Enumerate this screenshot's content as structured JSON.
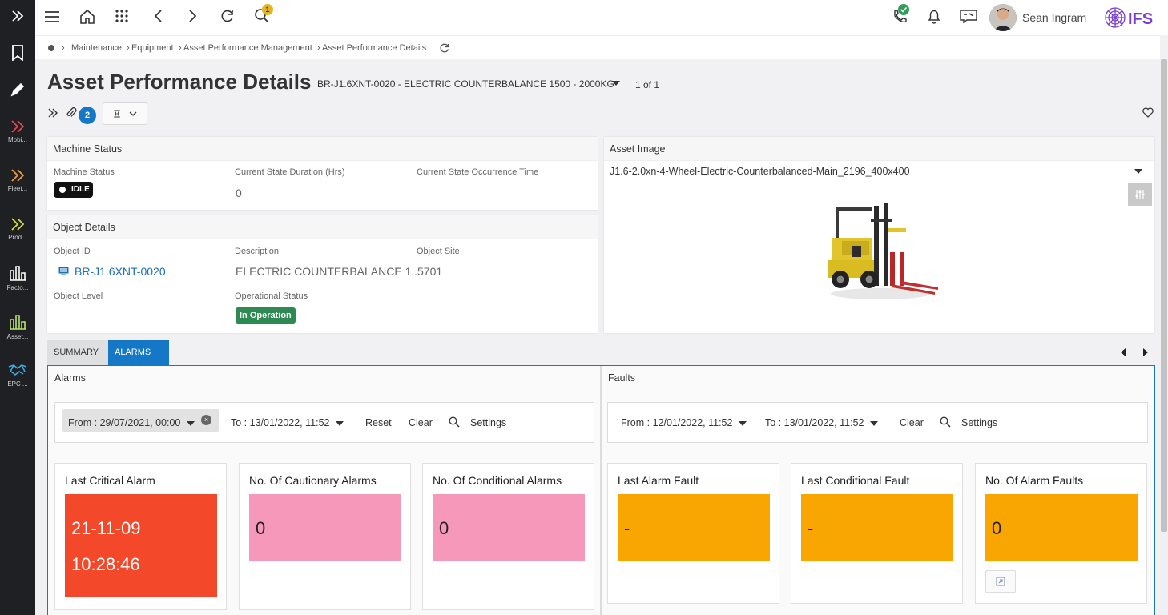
{
  "colors": {
    "rail_bg": "#1e2024",
    "accent_blue": "#1578c7",
    "critical": "#f3492a",
    "cautionary": "#f598b9",
    "fault": "#f9a602",
    "status_green": "#2e8a53"
  },
  "rail": {
    "items": [
      {
        "label": "Mobi...",
        "icon": "chevrons-icon",
        "color": "#e5484d"
      },
      {
        "label": "Fleet...",
        "icon": "chevrons-icon",
        "color": "#f39c2b"
      },
      {
        "label": "Prod...",
        "icon": "chevrons-icon",
        "color": "#d8df3e"
      },
      {
        "label": "Facto...",
        "icon": "bar-chart-icon",
        "color": "#ffffff"
      },
      {
        "label": "Asset...",
        "icon": "bar-chart-icon",
        "color": "#b8e36a"
      },
      {
        "label": "EPC ...",
        "icon": "handshake-icon",
        "color": "#3fa7e0"
      }
    ]
  },
  "header": {
    "search_badge": "1",
    "user_name": "Sean Ingram",
    "logo_text": "IFS"
  },
  "breadcrumb": {
    "items": [
      "Maintenance",
      "Equipment",
      "Asset Performance Management",
      "Asset Performance Details"
    ]
  },
  "page": {
    "title": "Asset Performance Details",
    "record": "BR-J1.6XNT-0020 - ELECTRIC COUNTERBALANCE 1500 - 2000KG",
    "record_count": "1 of 1",
    "attachment_count": "2"
  },
  "machine_status": {
    "heading": "Machine Status",
    "status_label": "Machine Status",
    "status_value": "IDLE",
    "duration_label": "Current State Duration (Hrs)",
    "duration_value": "0",
    "occurrence_label": "Current State Occurrence Time",
    "occurrence_value": ""
  },
  "object_details": {
    "heading": "Object Details",
    "object_id_label": "Object ID",
    "object_id_value": "BR-J1.6XNT-0020",
    "description_label": "Description",
    "description_value": "ELECTRIC COUNTERBALANCE 1...",
    "site_label": "Object Site",
    "site_value": "5701",
    "level_label": "Object Level",
    "level_value": "",
    "op_status_label": "Operational Status",
    "op_status_value": "In Operation"
  },
  "asset_image": {
    "heading": "Asset Image",
    "selected": "J1.6-2.0xn-4-Wheel-Electric-Counterbalanced-Main_2196_400x400"
  },
  "tabs": [
    {
      "label": "SUMMARY",
      "active": false
    },
    {
      "label": "ALARMS",
      "active": true
    }
  ],
  "alarms": {
    "heading": "Alarms",
    "from": "From : 29/07/2021, 00:00",
    "to": "To : 13/01/2022, 11:52",
    "reset": "Reset",
    "clear": "Clear",
    "settings": "Settings",
    "tiles": [
      {
        "title": "Last Critical Alarm",
        "line1": "21-11-09",
        "line2": "10:28:46"
      },
      {
        "title": "No. Of Cautionary Alarms",
        "value": "0"
      },
      {
        "title": "No. Of Conditional Alarms",
        "value": "0"
      }
    ]
  },
  "faults": {
    "heading": "Faults",
    "from": "From : 12/01/2022, 11:52",
    "to": "To : 13/01/2022, 11:52",
    "clear": "Clear",
    "settings": "Settings",
    "tiles": [
      {
        "title": "Last Alarm Fault",
        "value": "-"
      },
      {
        "title": "Last Conditional Fault",
        "value": "-"
      },
      {
        "title": "No. Of Alarm Faults",
        "value": "0"
      }
    ]
  }
}
